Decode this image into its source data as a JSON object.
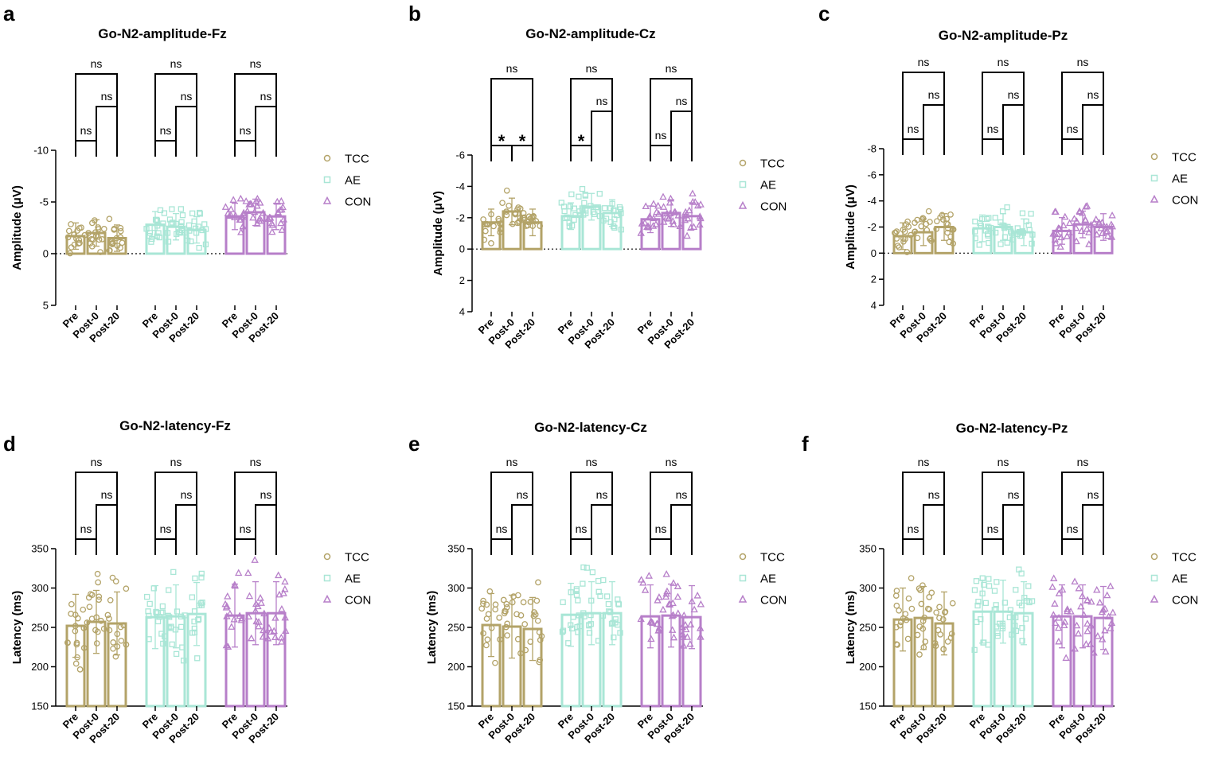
{
  "figure": {
    "colors": {
      "TCC": "#b3a368",
      "AE": "#a9e6d6",
      "CON": "#b77fc9"
    },
    "groups": [
      "TCC",
      "AE",
      "CON"
    ],
    "categories": [
      "Pre",
      "Post-0",
      "Post-20"
    ],
    "legend": [
      "TCC",
      "AE",
      "CON"
    ]
  },
  "chart_data": [
    {
      "panel": "a",
      "type": "bar",
      "title": "Go-N2-amplitude-Fz",
      "ylabel": "Amplitude (μV)",
      "yticks": [
        "-10",
        "-5",
        "0",
        "5"
      ],
      "ylim": [
        5,
        -10
      ],
      "inverted": true,
      "zero_line": true,
      "categories": [
        "Pre",
        "Post-0",
        "Post-20"
      ],
      "series": [
        {
          "name": "TCC",
          "values": [
            -1.7,
            -2.0,
            -1.5
          ]
        },
        {
          "name": "AE",
          "values": [
            -2.8,
            -2.6,
            -2.3
          ]
        },
        {
          "name": "CON",
          "values": [
            -3.6,
            -4.0,
            -3.6
          ]
        }
      ],
      "sig": [
        [
          {
            "label": "ns"
          },
          {
            "label": "ns"
          },
          {
            "label": "ns"
          }
        ],
        [
          {
            "label": "ns"
          },
          {
            "label": "ns"
          },
          {
            "label": "ns"
          }
        ],
        [
          {
            "label": "ns"
          },
          {
            "label": "ns"
          },
          {
            "label": "ns"
          }
        ]
      ]
    },
    {
      "panel": "b",
      "type": "bar",
      "title": "Go-N2-amplitude-Cz",
      "ylabel": "Amplitude (μV)",
      "yticks": [
        "-6",
        "-4",
        "-2",
        "0",
        "2",
        "4"
      ],
      "ylim": [
        4,
        -6
      ],
      "inverted": true,
      "zero_line": true,
      "categories": [
        "Pre",
        "Post-0",
        "Post-20"
      ],
      "series": [
        {
          "name": "TCC",
          "values": [
            -1.7,
            -2.4,
            -1.7
          ]
        },
        {
          "name": "AE",
          "values": [
            -2.1,
            -2.7,
            -2.3
          ]
        },
        {
          "name": "CON",
          "values": [
            -1.9,
            -2.3,
            -2.1
          ]
        }
      ],
      "sig": [
        [
          {
            "label": "*"
          },
          {
            "label": "*"
          },
          {
            "label": "ns"
          }
        ],
        [
          {
            "label": "*"
          },
          {
            "label": "ns"
          },
          {
            "label": "ns"
          }
        ],
        [
          {
            "label": "ns"
          },
          {
            "label": "ns"
          },
          {
            "label": "ns"
          }
        ]
      ]
    },
    {
      "panel": "c",
      "type": "bar",
      "title": "Go-N2-amplitude-Pz",
      "ylabel": "Amplitude (μV)",
      "yticks": [
        "-8",
        "-6",
        "-4",
        "-2",
        "0",
        "2",
        "4"
      ],
      "ylim": [
        4,
        -8
      ],
      "inverted": true,
      "zero_line": true,
      "categories": [
        "Pre",
        "Post-0",
        "Post-20"
      ],
      "series": [
        {
          "name": "TCC",
          "values": [
            -1.3,
            -1.6,
            -2.0
          ]
        },
        {
          "name": "AE",
          "values": [
            -1.9,
            -2.0,
            -1.6
          ]
        },
        {
          "name": "CON",
          "values": [
            -1.7,
            -2.2,
            -2.0
          ]
        }
      ],
      "sig": [
        [
          {
            "label": "ns"
          },
          {
            "label": "ns"
          },
          {
            "label": "ns"
          }
        ],
        [
          {
            "label": "ns"
          },
          {
            "label": "ns"
          },
          {
            "label": "ns"
          }
        ],
        [
          {
            "label": "ns"
          },
          {
            "label": "ns"
          },
          {
            "label": "ns"
          }
        ]
      ]
    },
    {
      "panel": "d",
      "type": "bar",
      "title": "Go-N2-latency-Fz",
      "ylabel": "Latency (ms)",
      "yticks": [
        "150",
        "200",
        "250",
        "300",
        "350"
      ],
      "ylim": [
        150,
        350
      ],
      "inverted": false,
      "zero_line": false,
      "categories": [
        "Pre",
        "Post-0",
        "Post-20"
      ],
      "series": [
        {
          "name": "TCC",
          "values": [
            252,
            257,
            255
          ]
        },
        {
          "name": "AE",
          "values": [
            263,
            264,
            267
          ]
        },
        {
          "name": "CON",
          "values": [
            265,
            268,
            268
          ]
        }
      ],
      "sig": [
        [
          {
            "label": "ns"
          },
          {
            "label": "ns"
          },
          {
            "label": "ns"
          }
        ],
        [
          {
            "label": "ns"
          },
          {
            "label": "ns"
          },
          {
            "label": "ns"
          }
        ],
        [
          {
            "label": "ns"
          },
          {
            "label": "ns"
          },
          {
            "label": "ns"
          }
        ]
      ]
    },
    {
      "panel": "e",
      "type": "bar",
      "title": "Go-N2-latency-Cz",
      "ylabel": "Latency (ms)",
      "yticks": [
        "150",
        "200",
        "250",
        "300",
        "350"
      ],
      "ylim": [
        150,
        350
      ],
      "inverted": false,
      "zero_line": false,
      "categories": [
        "Pre",
        "Post-0",
        "Post-20"
      ],
      "series": [
        {
          "name": "TCC",
          "values": [
            253,
            251,
            248
          ]
        },
        {
          "name": "AE",
          "values": [
            266,
            268,
            268
          ]
        },
        {
          "name": "CON",
          "values": [
            264,
            265,
            263
          ]
        }
      ],
      "sig": [
        [
          {
            "label": "ns"
          },
          {
            "label": "ns"
          },
          {
            "label": "ns"
          }
        ],
        [
          {
            "label": "ns"
          },
          {
            "label": "ns"
          },
          {
            "label": "ns"
          }
        ],
        [
          {
            "label": "ns"
          },
          {
            "label": "ns"
          },
          {
            "label": "ns"
          }
        ]
      ]
    },
    {
      "panel": "f",
      "type": "bar",
      "title": "Go-N2-latency-Pz",
      "ylabel": "Latency (ms)",
      "yticks": [
        "150",
        "200",
        "250",
        "300",
        "350"
      ],
      "ylim": [
        150,
        350
      ],
      "inverted": false,
      "zero_line": false,
      "categories": [
        "Pre",
        "Post-0",
        "Post-20"
      ],
      "series": [
        {
          "name": "TCC",
          "values": [
            260,
            262,
            255
          ]
        },
        {
          "name": "AE",
          "values": [
            270,
            270,
            268
          ]
        },
        {
          "name": "CON",
          "values": [
            264,
            264,
            262
          ]
        }
      ],
      "sig": [
        [
          {
            "label": "ns"
          },
          {
            "label": "ns"
          },
          {
            "label": "ns"
          }
        ],
        [
          {
            "label": "ns"
          },
          {
            "label": "ns"
          },
          {
            "label": "ns"
          }
        ],
        [
          {
            "label": "ns"
          },
          {
            "label": "ns"
          },
          {
            "label": "ns"
          }
        ]
      ]
    }
  ]
}
